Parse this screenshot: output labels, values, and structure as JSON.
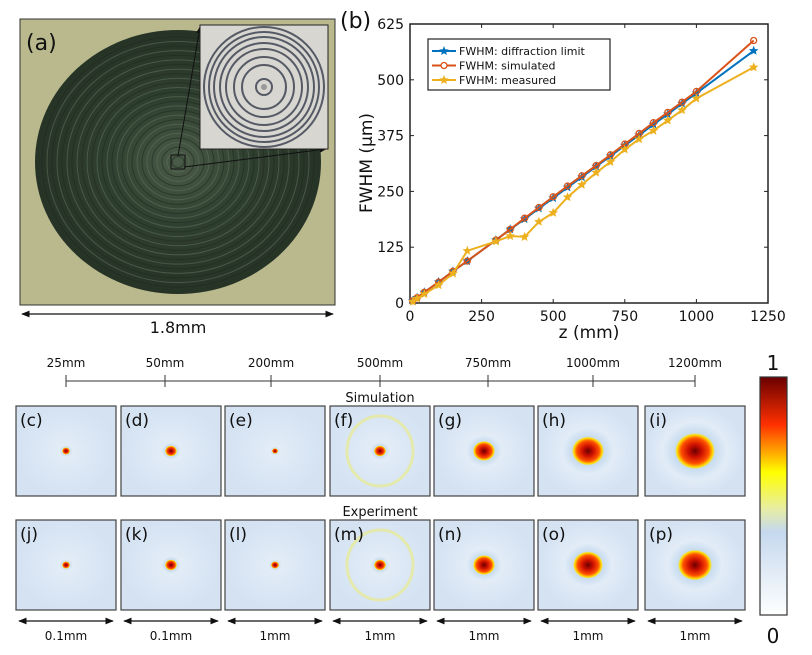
{
  "panel_a": {
    "label": "(a)",
    "scale_label": "1.8mm"
  },
  "chart_data": {
    "type": "line",
    "panel_label": "(b)",
    "xlabel": "z (mm)",
    "ylabel": "FWHM (μm)",
    "xlim": [
      0,
      1250
    ],
    "ylim": [
      0,
      625
    ],
    "xticks": [
      "0",
      "250",
      "500",
      "750",
      "1000",
      "1250"
    ],
    "yticks": [
      "0",
      "125",
      "250",
      "375",
      "500",
      "625"
    ],
    "grid": false,
    "legend_position": "top-left",
    "x": [
      10,
      25,
      50,
      100,
      150,
      200,
      300,
      350,
      400,
      450,
      500,
      550,
      600,
      650,
      700,
      750,
      800,
      850,
      900,
      950,
      1000,
      1200
    ],
    "series": [
      {
        "name": "FWHM: diffraction limit",
        "color": "#0072BD",
        "marker": "star",
        "values": [
          5,
          12,
          24,
          47,
          71,
          94,
          141,
          165,
          188,
          212,
          235,
          259,
          282,
          306,
          329,
          353,
          376,
          400,
          423,
          447,
          470,
          565
        ]
      },
      {
        "name": "FWHM: simulated",
        "color": "#D95319",
        "marker": "circle",
        "values": [
          5,
          12,
          24,
          47,
          71,
          94,
          141,
          165,
          190,
          214,
          238,
          262,
          285,
          308,
          332,
          356,
          380,
          404,
          427,
          450,
          474,
          588
        ]
      },
      {
        "name": "FWHM: measured",
        "color": "#EDB120",
        "marker": "star",
        "values": [
          3,
          10,
          20,
          40,
          66,
          117,
          138,
          150,
          148,
          182,
          202,
          237,
          265,
          292,
          316,
          344,
          367,
          386,
          409,
          432,
          458,
          528
        ]
      }
    ]
  },
  "bottom": {
    "distances": [
      "25mm",
      "50mm",
      "200mm",
      "500mm",
      "750mm",
      "1000mm",
      "1200mm"
    ],
    "row_simulation_title": "Simulation",
    "row_experiment_title": "Experiment",
    "simulation_labels": [
      "(c)",
      "(d)",
      "(e)",
      "(f)",
      "(g)",
      "(h)",
      "(i)"
    ],
    "experiment_labels": [
      "(j)",
      "(k)",
      "(l)",
      "(m)",
      "(n)",
      "(o)",
      "(p)"
    ],
    "scale_labels": [
      "0.1mm",
      "0.1mm",
      "1mm",
      "1mm",
      "1mm",
      "1mm",
      "1mm"
    ],
    "colorbar": {
      "max_label": "1",
      "min_label": "0"
    }
  }
}
